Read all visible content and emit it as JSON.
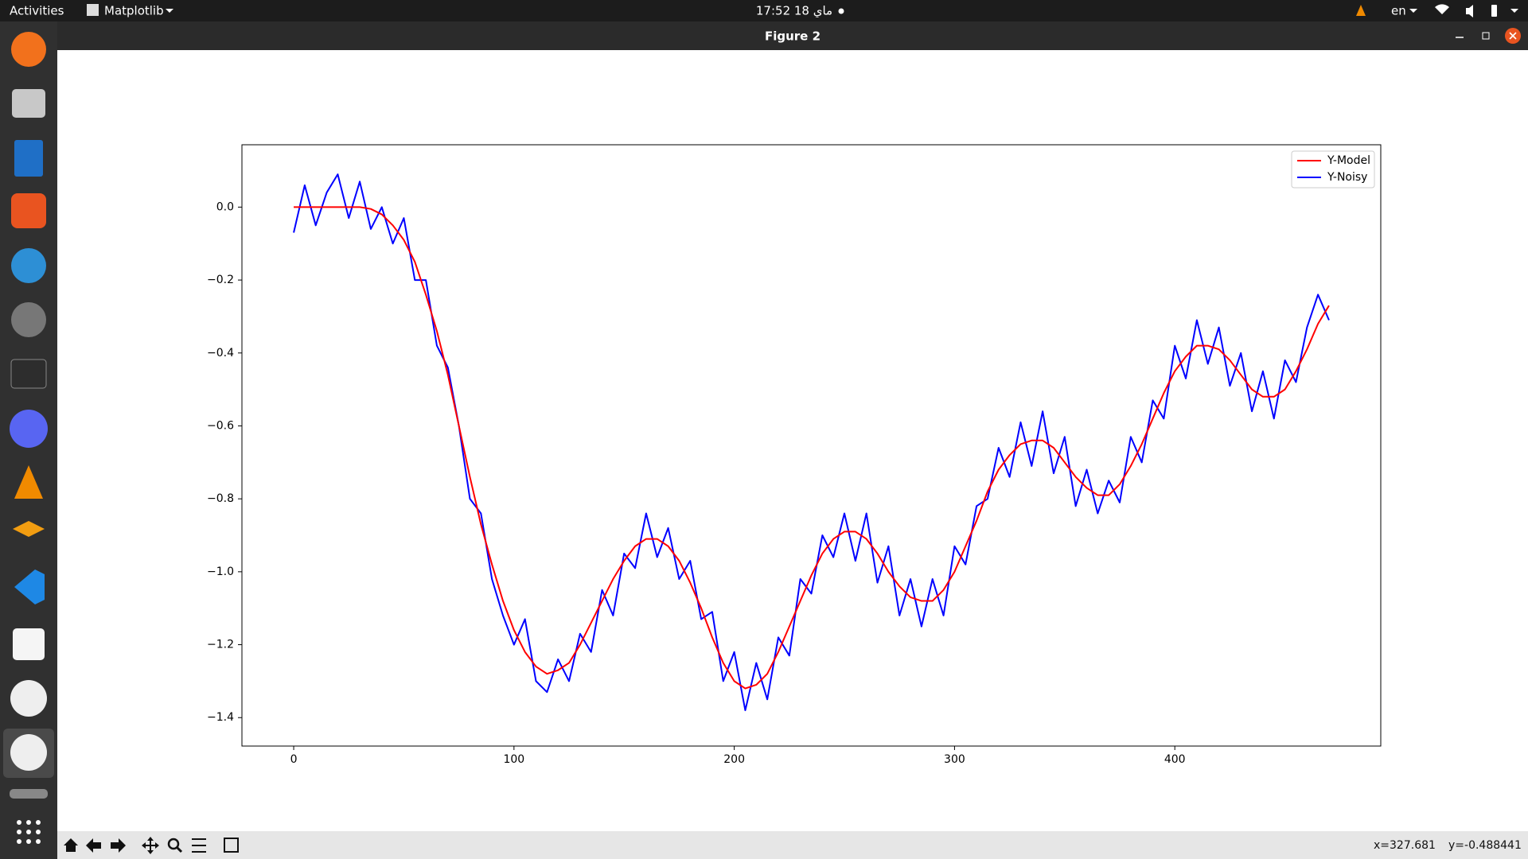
{
  "desktop": {
    "activities": "Activities",
    "app_menu": "Matplotlib",
    "clock": "17:52  18 ماي",
    "language": "en"
  },
  "window": {
    "title": "Figure 2"
  },
  "status": {
    "x": "x=327.681",
    "y": "y=-0.488441"
  },
  "chart_data": {
    "type": "line",
    "x": [
      0,
      5,
      10,
      15,
      20,
      25,
      30,
      35,
      40,
      45,
      50,
      55,
      60,
      65,
      70,
      75,
      80,
      85,
      90,
      95,
      100,
      105,
      110,
      115,
      120,
      125,
      130,
      135,
      140,
      145,
      150,
      155,
      160,
      165,
      170,
      175,
      180,
      185,
      190,
      195,
      200,
      205,
      210,
      215,
      220,
      225,
      230,
      235,
      240,
      245,
      250,
      255,
      260,
      265,
      270,
      275,
      280,
      285,
      290,
      295,
      300,
      305,
      310,
      315,
      320,
      325,
      330,
      335,
      340,
      345,
      350,
      355,
      360,
      365,
      370,
      375,
      380,
      385,
      390,
      395,
      400,
      405,
      410,
      415,
      420,
      425,
      430,
      435,
      440,
      445,
      450,
      455,
      460,
      465,
      470
    ],
    "series": [
      {
        "name": "Y-Model",
        "color": "#ff0000",
        "values": [
          0,
          0,
          0,
          0,
          0,
          0,
          0,
          -0.005,
          -0.02,
          -0.05,
          -0.09,
          -0.15,
          -0.24,
          -0.34,
          -0.46,
          -0.6,
          -0.74,
          -0.87,
          -0.98,
          -1.08,
          -1.16,
          -1.22,
          -1.26,
          -1.28,
          -1.27,
          -1.25,
          -1.2,
          -1.14,
          -1.08,
          -1.02,
          -0.97,
          -0.93,
          -0.91,
          -0.91,
          -0.93,
          -0.97,
          -1.03,
          -1.1,
          -1.18,
          -1.25,
          -1.3,
          -1.32,
          -1.31,
          -1.28,
          -1.22,
          -1.15,
          -1.08,
          -1.01,
          -0.95,
          -0.91,
          -0.89,
          -0.89,
          -0.91,
          -0.95,
          -1.0,
          -1.04,
          -1.07,
          -1.08,
          -1.08,
          -1.05,
          -1.0,
          -0.93,
          -0.86,
          -0.78,
          -0.72,
          -0.68,
          -0.65,
          -0.64,
          -0.64,
          -0.66,
          -0.7,
          -0.74,
          -0.77,
          -0.79,
          -0.79,
          -0.76,
          -0.71,
          -0.65,
          -0.58,
          -0.51,
          -0.45,
          -0.41,
          -0.38,
          -0.38,
          -0.39,
          -0.42,
          -0.46,
          -0.5,
          -0.52,
          -0.52,
          -0.5,
          -0.45,
          -0.39,
          -0.32,
          -0.27
        ]
      },
      {
        "name": "Y-Noisy",
        "color": "#0000ff",
        "values": [
          -0.07,
          0.06,
          -0.05,
          0.04,
          0.09,
          -0.03,
          0.07,
          -0.06,
          0.0,
          -0.1,
          -0.03,
          -0.2,
          -0.2,
          -0.38,
          -0.44,
          -0.6,
          -0.8,
          -0.84,
          -1.02,
          -1.12,
          -1.2,
          -1.13,
          -1.3,
          -1.33,
          -1.24,
          -1.3,
          -1.17,
          -1.22,
          -1.05,
          -1.12,
          -0.95,
          -0.99,
          -0.84,
          -0.96,
          -0.88,
          -1.02,
          -0.97,
          -1.13,
          -1.11,
          -1.3,
          -1.22,
          -1.38,
          -1.25,
          -1.35,
          -1.18,
          -1.23,
          -1.02,
          -1.06,
          -0.9,
          -0.96,
          -0.84,
          -0.97,
          -0.84,
          -1.03,
          -0.93,
          -1.12,
          -1.02,
          -1.15,
          -1.02,
          -1.12,
          -0.93,
          -0.98,
          -0.82,
          -0.8,
          -0.66,
          -0.74,
          -0.59,
          -0.71,
          -0.56,
          -0.73,
          -0.63,
          -0.82,
          -0.72,
          -0.84,
          -0.75,
          -0.81,
          -0.63,
          -0.7,
          -0.53,
          -0.58,
          -0.38,
          -0.47,
          -0.31,
          -0.43,
          -0.33,
          -0.49,
          -0.4,
          -0.56,
          -0.45,
          -0.58,
          -0.42,
          -0.48,
          -0.33,
          -0.24,
          -0.31
        ]
      }
    ],
    "xlim": [
      -23.5,
      493.5
    ],
    "ylim": [
      -1.478,
      0.171
    ],
    "xticks": [
      0,
      100,
      200,
      300,
      400
    ],
    "yticks": [
      {
        "value": 0,
        "label": "0.0"
      },
      {
        "value": -0.2,
        "label": "−0.2"
      },
      {
        "value": -0.4,
        "label": "−0.4"
      },
      {
        "value": -0.6,
        "label": "−0.6"
      },
      {
        "value": -0.8,
        "label": "−0.8"
      },
      {
        "value": -1.0,
        "label": "−1.0"
      },
      {
        "value": -1.2,
        "label": "−1.2"
      },
      {
        "value": -1.4,
        "label": "−1.4"
      }
    ],
    "legend": "upper right"
  }
}
